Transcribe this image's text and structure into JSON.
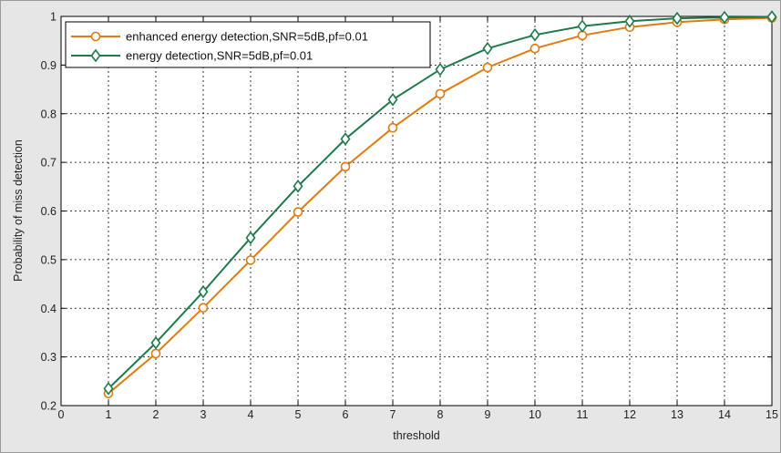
{
  "chart_data": {
    "type": "line",
    "title": "",
    "xlabel": "threshold",
    "ylabel": "Probability of miss detection",
    "xlim": [
      0,
      15
    ],
    "ylim": [
      0.2,
      1
    ],
    "xticks": [
      0,
      1,
      2,
      3,
      4,
      5,
      6,
      7,
      8,
      9,
      10,
      11,
      12,
      13,
      14,
      15
    ],
    "yticks": [
      0.2,
      0.3,
      0.4,
      0.5,
      0.6,
      0.7,
      0.8,
      0.9,
      1
    ],
    "ytick_labels": [
      "0.2",
      "0.3",
      "0.4",
      "0.5",
      "0.6",
      "0.7",
      "0.8",
      "0.9",
      "1"
    ],
    "grid": true,
    "legend_position": "top-left",
    "x": [
      1,
      2,
      3,
      4,
      5,
      6,
      7,
      8,
      9,
      10,
      11,
      12,
      13,
      14,
      15
    ],
    "series": [
      {
        "name": "enhanced energy detection,SNR=5dB,pf=0.01",
        "color": "#e07b10",
        "marker": "circle",
        "values": [
          0.225,
          0.307,
          0.401,
          0.499,
          0.598,
          0.691,
          0.771,
          0.841,
          0.895,
          0.934,
          0.961,
          0.978,
          0.988,
          0.994,
          0.997
        ]
      },
      {
        "name": "energy detection,SNR=5dB,pf=0.01",
        "color": "#1e7a4a",
        "marker": "diamond",
        "values": [
          0.235,
          0.329,
          0.434,
          0.545,
          0.651,
          0.748,
          0.829,
          0.891,
          0.934,
          0.962,
          0.98,
          0.99,
          0.996,
          0.998,
          0.999
        ]
      }
    ]
  }
}
